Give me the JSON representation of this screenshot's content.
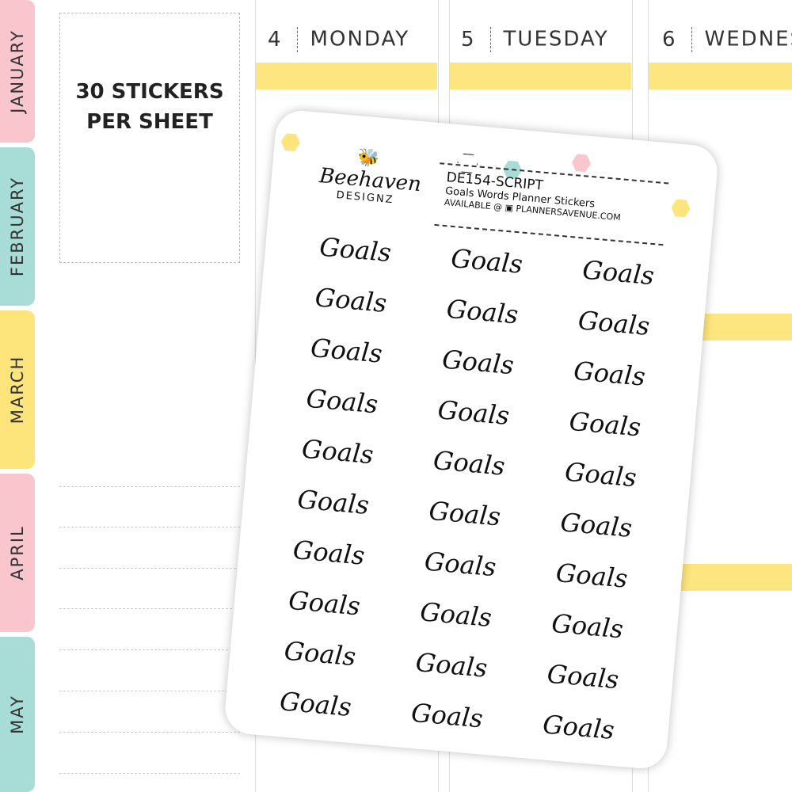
{
  "months": [
    {
      "label": "JANUARY",
      "color": "#f8c6cc"
    },
    {
      "label": "FEBRUARY",
      "color": "#a8dcd6"
    },
    {
      "label": "MARCH",
      "color": "#fde57c"
    },
    {
      "label": "APRIL",
      "color": "#f8c6cc"
    },
    {
      "label": "MAY",
      "color": "#a8dcd6"
    }
  ],
  "info": {
    "line1": "30 STICKERS",
    "line2": "PER SHEET"
  },
  "days": [
    {
      "num": "4",
      "name": "MONDAY"
    },
    {
      "num": "5",
      "name": "TUESDAY"
    },
    {
      "num": "6",
      "name": "WEDNES"
    }
  ],
  "accent": "#fde67f",
  "sheet": {
    "brand": "Beehaven",
    "brand_sub": "DESIGNZ",
    "code": "DE154-SCRIPT",
    "title": "Goals Words Planner Stickers",
    "available": "AVAILABLE @ ▣ PLANNERSAVENUE.COM",
    "watermark": "BEEHAVEN DESIGNZ",
    "stickers": [
      "Goals",
      "Goals",
      "Goals",
      "Goals",
      "Goals",
      "Goals",
      "Goals",
      "Goals",
      "Goals",
      "Goals",
      "Goals",
      "Goals",
      "Goals",
      "Goals",
      "Goals",
      "Goals",
      "Goals",
      "Goals",
      "Goals",
      "Goals",
      "Goals",
      "Goals",
      "Goals",
      "Goals",
      "Goals",
      "Goals",
      "Goals",
      "Goals",
      "Goals",
      "Goals"
    ]
  }
}
